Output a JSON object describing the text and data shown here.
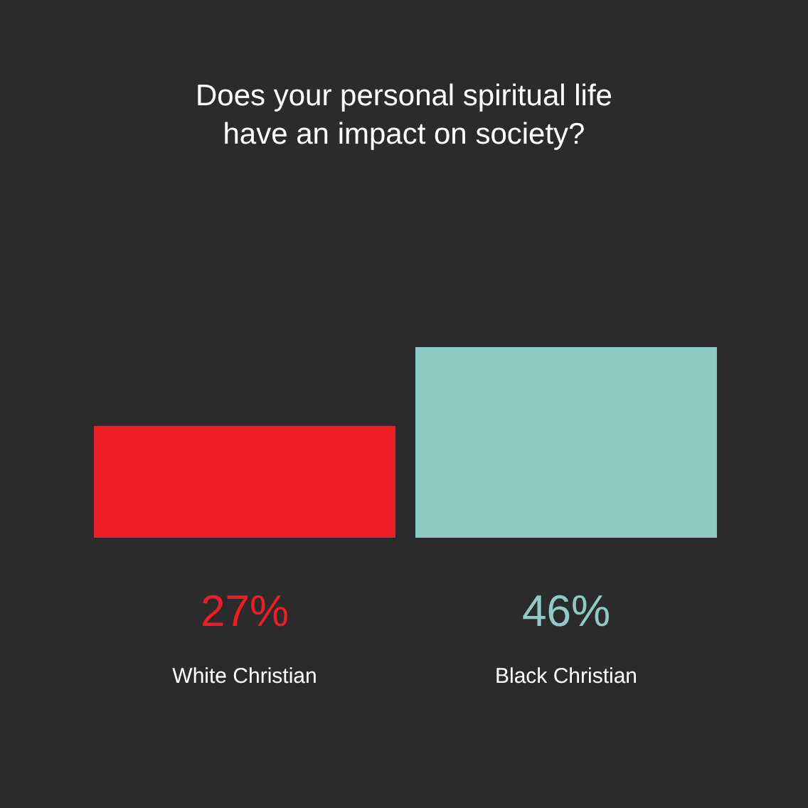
{
  "chart_data": {
    "type": "bar",
    "title": "Does your personal spiritual life\nhave an impact on society?",
    "categories": [
      "White Christian",
      "Black Christian"
    ],
    "values": [
      27,
      46
    ],
    "colors": [
      "#ee1c25",
      "#8ecbc5"
    ],
    "value_labels": [
      "27%",
      "46%"
    ],
    "ylim": [
      0,
      46
    ]
  }
}
